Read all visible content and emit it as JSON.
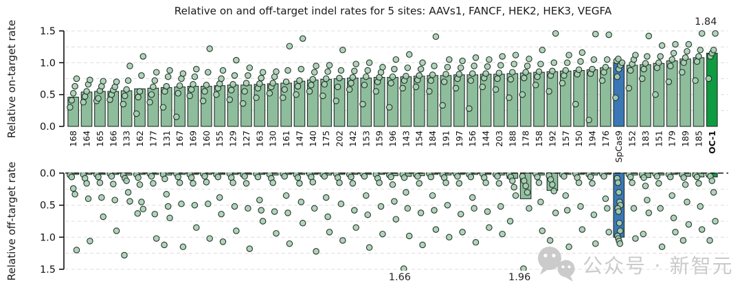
{
  "figure": {
    "title": "Relative on and off-target indel rates for 5 sites: AAVs1, FANCF, HEK2, HEK3, VEGFA"
  },
  "watermark": {
    "icon": "wechat-bubbles-icon",
    "text": "公众号 · 新智元",
    "color": "#c2c2c2"
  },
  "chart_data": {
    "type": "bar",
    "title": "Relative on and off-target indel rates for 5 sites: AAVs1, FANCF, HEK2, HEK3, VEGFA",
    "panels": [
      {
        "id": "top",
        "ylabel": "Relative on-target rate",
        "yticks": [
          0.0,
          0.5,
          1.0,
          1.5
        ],
        "ylim": [
          0,
          1.5
        ],
        "inverted": false,
        "grid": true
      },
      {
        "id": "bottom",
        "ylabel": "Relative off-target rate",
        "yticks": [
          0.0,
          0.5,
          1.0,
          1.5
        ],
        "ylim": [
          0,
          1.5
        ],
        "inverted": true,
        "grid": true
      }
    ],
    "ymax": 1.5,
    "ytick_labels": [
      "0.0",
      "0.5",
      "1.0",
      "1.5"
    ],
    "colors": {
      "bar": "#8ebd9c",
      "bar_stroke": "#1f2d24",
      "point": "#a9cfb4",
      "point_stroke": "#23322a",
      "spcas9": "#3a78b5",
      "oc1": "#0f9b41",
      "grid": "#dcdcdc",
      "axis": "#111111",
      "zero_line": "#111111",
      "label": "#111111",
      "title": "#1a1a1a",
      "annotation": "#222222"
    },
    "annotations": [
      {
        "panel": "top",
        "category": "OC-1",
        "text": "1.84",
        "value": 1.84
      },
      {
        "panel": "bottom",
        "category": "143",
        "text": "1.66",
        "value": 1.66
      },
      {
        "panel": "bottom",
        "category": "178",
        "text": "1.96",
        "value": 1.96
      }
    ],
    "categories": [
      {
        "label": "168",
        "highlight": null,
        "on": 0.46,
        "off": 0.02,
        "on_pts": [
          0.3,
          0.41,
          0.52,
          0.63,
          0.75
        ],
        "off_pts": [
          0.03,
          0.06,
          0.24,
          0.33,
          1.2
        ]
      },
      {
        "label": "164",
        "highlight": null,
        "on": 0.54,
        "off": 0.02,
        "on_pts": [
          0.38,
          0.47,
          0.55,
          0.66,
          0.73
        ],
        "off_pts": [
          0.02,
          0.08,
          0.16,
          0.4,
          1.06
        ]
      },
      {
        "label": "165",
        "highlight": null,
        "on": 0.55,
        "off": 0.02,
        "on_pts": [
          0.4,
          0.44,
          0.56,
          0.63,
          0.71
        ],
        "off_pts": [
          0.02,
          0.06,
          0.15,
          0.38,
          0.68
        ]
      },
      {
        "label": "166",
        "highlight": null,
        "on": 0.55,
        "off": 0.02,
        "on_pts": [
          0.42,
          0.5,
          0.57,
          0.62,
          0.7
        ],
        "off_pts": [
          0.01,
          0.05,
          0.17,
          0.42,
          0.9
        ]
      },
      {
        "label": "133",
        "highlight": null,
        "on": 0.56,
        "off": 0.03,
        "on_pts": [
          0.35,
          0.48,
          0.58,
          0.72,
          0.95
        ],
        "off_pts": [
          0.03,
          0.08,
          0.12,
          0.3,
          0.44,
          1.28
        ]
      },
      {
        "label": "162",
        "highlight": null,
        "on": 0.59,
        "off": 0.02,
        "on_pts": [
          0.2,
          0.46,
          0.55,
          0.8,
          1.1
        ],
        "off_pts": [
          0.02,
          0.07,
          0.18,
          0.45,
          0.56,
          0.63
        ]
      },
      {
        "label": "177",
        "highlight": null,
        "on": 0.6,
        "off": 0.02,
        "on_pts": [
          0.38,
          0.5,
          0.62,
          0.72,
          0.85
        ],
        "off_pts": [
          0.01,
          0.05,
          0.16,
          0.64,
          1.02
        ]
      },
      {
        "label": "131",
        "highlight": null,
        "on": 0.61,
        "off": 0.03,
        "on_pts": [
          0.3,
          0.55,
          0.63,
          0.78,
          0.88
        ],
        "off_pts": [
          0.02,
          0.09,
          0.33,
          0.52,
          0.7,
          1.12
        ]
      },
      {
        "label": "167",
        "highlight": null,
        "on": 0.62,
        "off": 0.02,
        "on_pts": [
          0.15,
          0.52,
          0.64,
          0.75,
          0.83
        ],
        "off_pts": [
          0.01,
          0.06,
          0.15,
          0.48,
          1.15
        ]
      },
      {
        "label": "169",
        "highlight": null,
        "on": 0.63,
        "off": 0.02,
        "on_pts": [
          0.48,
          0.58,
          0.66,
          0.78,
          0.9
        ],
        "off_pts": [
          0.02,
          0.07,
          0.16,
          0.5,
          0.85
        ]
      },
      {
        "label": "160",
        "highlight": null,
        "on": 0.63,
        "off": 0.02,
        "on_pts": [
          0.4,
          0.55,
          0.65,
          0.85,
          1.22
        ],
        "off_pts": [
          0.01,
          0.05,
          0.14,
          0.48,
          1.02
        ]
      },
      {
        "label": "155",
        "highlight": null,
        "on": 0.64,
        "off": 0.02,
        "on_pts": [
          0.5,
          0.6,
          0.67,
          0.75,
          0.88
        ],
        "off_pts": [
          0.02,
          0.06,
          0.38,
          0.64,
          1.07
        ]
      },
      {
        "label": "129",
        "highlight": null,
        "on": 0.65,
        "off": 0.02,
        "on_pts": [
          0.42,
          0.57,
          0.66,
          0.8,
          1.04
        ],
        "off_pts": [
          0.01,
          0.07,
          0.15,
          0.52,
          0.9
        ]
      },
      {
        "label": "127",
        "highlight": null,
        "on": 0.65,
        "off": 0.02,
        "on_pts": [
          0.36,
          0.55,
          0.68,
          0.8,
          0.92
        ],
        "off_pts": [
          0.02,
          0.05,
          0.16,
          0.55,
          1.18
        ]
      },
      {
        "label": "163",
        "highlight": null,
        "on": 0.66,
        "off": 0.02,
        "on_pts": [
          0.45,
          0.6,
          0.67,
          0.76,
          0.85
        ],
        "off_pts": [
          0.01,
          0.06,
          0.42,
          0.58,
          0.75
        ]
      },
      {
        "label": "130",
        "highlight": null,
        "on": 0.67,
        "off": 0.03,
        "on_pts": [
          0.52,
          0.62,
          0.68,
          0.78,
          0.86
        ],
        "off_pts": [
          0.02,
          0.08,
          0.15,
          0.6,
          0.94
        ]
      },
      {
        "label": "161",
        "highlight": null,
        "on": 0.68,
        "off": 0.02,
        "on_pts": [
          0.45,
          0.58,
          0.7,
          0.88,
          1.26
        ],
        "off_pts": [
          0.01,
          0.05,
          0.35,
          0.62,
          1.1
        ]
      },
      {
        "label": "147",
        "highlight": null,
        "on": 0.71,
        "off": 0.02,
        "on_pts": [
          0.5,
          0.63,
          0.72,
          0.9,
          1.38
        ],
        "off_pts": [
          0.02,
          0.07,
          0.16,
          0.45,
          0.78
        ]
      },
      {
        "label": "140",
        "highlight": null,
        "on": 0.73,
        "off": 0.02,
        "on_pts": [
          0.55,
          0.65,
          0.74,
          0.85,
          0.95
        ],
        "off_pts": [
          0.01,
          0.06,
          0.14,
          0.55,
          1.22
        ]
      },
      {
        "label": "175",
        "highlight": null,
        "on": 0.74,
        "off": 0.03,
        "on_pts": [
          0.48,
          0.66,
          0.75,
          0.86,
          0.96
        ],
        "off_pts": [
          0.02,
          0.05,
          0.38,
          0.68,
          0.92
        ]
      },
      {
        "label": "202",
        "highlight": null,
        "on": 0.75,
        "off": 0.02,
        "on_pts": [
          0.4,
          0.62,
          0.76,
          0.88,
          1.2
        ],
        "off_pts": [
          0.01,
          0.07,
          0.15,
          0.48,
          1.05
        ]
      },
      {
        "label": "142",
        "highlight": null,
        "on": 0.76,
        "off": 0.02,
        "on_pts": [
          0.58,
          0.68,
          0.77,
          0.87,
          0.98
        ],
        "off_pts": [
          0.02,
          0.06,
          0.16,
          0.58,
          0.85
        ]
      },
      {
        "label": "153",
        "highlight": null,
        "on": 0.76,
        "off": 0.02,
        "on_pts": [
          0.35,
          0.65,
          0.78,
          0.88,
          1.0
        ],
        "off_pts": [
          0.01,
          0.05,
          0.35,
          0.65,
          1.16
        ]
      },
      {
        "label": "159",
        "highlight": null,
        "on": 0.77,
        "off": 0.02,
        "on_pts": [
          0.55,
          0.7,
          0.77,
          0.85,
          0.93
        ],
        "off_pts": [
          0.02,
          0.08,
          0.15,
          0.52,
          0.95
        ]
      },
      {
        "label": "196",
        "highlight": null,
        "on": 0.77,
        "off": 0.04,
        "on_pts": [
          0.3,
          0.68,
          0.78,
          0.9,
          1.05
        ],
        "off_pts": [
          0.03,
          0.06,
          0.18,
          0.44,
          0.72
        ]
      },
      {
        "label": "143",
        "highlight": null,
        "on": 0.78,
        "off": 0.05,
        "on_pts": [
          0.6,
          0.72,
          0.79,
          0.92,
          1.13
        ],
        "off_pts": [
          0.02,
          0.07,
          0.3,
          0.55,
          0.98,
          1.66
        ]
      },
      {
        "label": "154",
        "highlight": null,
        "on": 0.79,
        "off": 0.04,
        "on_pts": [
          0.62,
          0.73,
          0.8,
          0.9,
          1.0
        ],
        "off_pts": [
          0.02,
          0.05,
          0.16,
          0.62,
          1.12
        ]
      },
      {
        "label": "184",
        "highlight": null,
        "on": 0.8,
        "off": 0.02,
        "on_pts": [
          0.55,
          0.72,
          0.81,
          0.95,
          1.41
        ],
        "off_pts": [
          0.01,
          0.06,
          0.35,
          0.58,
          0.88
        ]
      },
      {
        "label": "191",
        "highlight": null,
        "on": 0.8,
        "off": 0.03,
        "on_pts": [
          0.33,
          0.7,
          0.82,
          0.93,
          1.05
        ],
        "off_pts": [
          0.02,
          0.07,
          0.15,
          0.5,
          1.0
        ]
      },
      {
        "label": "197",
        "highlight": null,
        "on": 0.81,
        "off": 0.02,
        "on_pts": [
          0.6,
          0.75,
          0.82,
          0.92,
          1.03
        ],
        "off_pts": [
          0.01,
          0.05,
          0.16,
          0.64,
          0.92
        ]
      },
      {
        "label": "156",
        "highlight": null,
        "on": 0.81,
        "off": 0.02,
        "on_pts": [
          0.28,
          0.72,
          0.83,
          0.95,
          1.08
        ],
        "off_pts": [
          0.02,
          0.06,
          0.38,
          0.55,
          1.08
        ]
      },
      {
        "label": "144",
        "highlight": null,
        "on": 0.82,
        "off": 0.02,
        "on_pts": [
          0.62,
          0.76,
          0.83,
          0.94,
          1.05
        ],
        "off_pts": [
          0.01,
          0.07,
          0.15,
          0.6,
          0.85
        ]
      },
      {
        "label": "203",
        "highlight": null,
        "on": 0.82,
        "off": 0.03,
        "on_pts": [
          0.58,
          0.75,
          0.84,
          0.96,
          1.1
        ],
        "off_pts": [
          0.02,
          0.05,
          0.16,
          0.52,
          0.95
        ]
      },
      {
        "label": "188",
        "highlight": null,
        "on": 0.83,
        "off": 0.08,
        "on_pts": [
          0.45,
          0.74,
          0.85,
          0.98,
          1.12
        ],
        "off_pts": [
          0.02,
          0.06,
          0.12,
          0.22,
          0.35,
          0.75
        ]
      },
      {
        "label": "178",
        "highlight": null,
        "on": 0.84,
        "off": 0.4,
        "on_pts": [
          0.5,
          0.76,
          0.85,
          0.95,
          1.06
        ],
        "off_pts": [
          0.05,
          0.12,
          0.2,
          0.3,
          0.55,
          1.96
        ]
      },
      {
        "label": "158",
        "highlight": null,
        "on": 0.85,
        "off": 0.03,
        "on_pts": [
          0.65,
          0.78,
          0.86,
          0.98,
          1.2
        ],
        "off_pts": [
          0.01,
          0.06,
          0.15,
          0.45,
          0.9
        ]
      },
      {
        "label": "192",
        "highlight": null,
        "on": 0.86,
        "off": 0.27,
        "on_pts": [
          0.55,
          0.8,
          0.87,
          1.0,
          1.48
        ],
        "off_pts": [
          0.04,
          0.1,
          0.18,
          0.28,
          0.62,
          1.05
        ]
      },
      {
        "label": "157",
        "highlight": null,
        "on": 0.87,
        "off": 0.02,
        "on_pts": [
          0.68,
          0.8,
          0.88,
          1.0,
          1.12
        ],
        "off_pts": [
          0.02,
          0.05,
          0.35,
          0.58,
          1.15
        ]
      },
      {
        "label": "150",
        "highlight": null,
        "on": 0.88,
        "off": 0.02,
        "on_pts": [
          0.35,
          0.82,
          0.89,
          1.02,
          1.16
        ],
        "off_pts": [
          0.01,
          0.07,
          0.15,
          0.52,
          0.88
        ]
      },
      {
        "label": "194",
        "highlight": null,
        "on": 0.89,
        "off": 0.03,
        "on_pts": [
          0.1,
          0.83,
          0.9,
          1.05,
          1.45
        ],
        "off_pts": [
          0.02,
          0.06,
          0.16,
          0.65,
          1.1
        ]
      },
      {
        "label": "176",
        "highlight": null,
        "on": 0.92,
        "off": 0.02,
        "on_pts": [
          0.72,
          0.85,
          0.93,
          1.05,
          1.44
        ],
        "off_pts": [
          0.01,
          0.05,
          0.4,
          0.55,
          0.92
        ]
      },
      {
        "label": "SpCas9",
        "highlight": "spcas9",
        "on": 1.0,
        "off": 1.0,
        "on_pts": [
          0.45,
          0.78,
          0.9,
          0.96,
          1.0,
          1.03,
          1.06
        ],
        "off_pts": [
          0.08,
          0.15,
          0.3,
          0.45,
          0.5,
          0.55,
          0.6,
          0.78,
          0.9,
          0.98,
          1.02,
          1.06,
          1.1
        ]
      },
      {
        "label": "152",
        "highlight": null,
        "on": 0.96,
        "off": 0.03,
        "on_pts": [
          0.6,
          0.88,
          0.98,
          1.05,
          1.12
        ],
        "off_pts": [
          0.02,
          0.06,
          0.15,
          0.55,
          1.02
        ]
      },
      {
        "label": "183",
        "highlight": null,
        "on": 0.97,
        "off": 0.07,
        "on_pts": [
          0.75,
          0.9,
          0.99,
          1.1,
          1.42
        ],
        "off_pts": [
          0.02,
          0.07,
          0.2,
          0.42,
          0.62,
          0.95
        ]
      },
      {
        "label": "151",
        "highlight": null,
        "on": 0.99,
        "off": 0.03,
        "on_pts": [
          0.5,
          0.92,
          1.0,
          1.1,
          1.27
        ],
        "off_pts": [
          0.01,
          0.05,
          0.16,
          0.55,
          1.15
        ]
      },
      {
        "label": "179",
        "highlight": null,
        "on": 1.03,
        "off": 0.02,
        "on_pts": [
          0.7,
          0.95,
          1.05,
          1.15,
          1.29
        ],
        "off_pts": [
          0.02,
          0.06,
          0.35,
          0.7,
          0.92
        ]
      },
      {
        "label": "189",
        "highlight": null,
        "on": 1.06,
        "off": 0.05,
        "on_pts": [
          0.85,
          1.0,
          1.08,
          1.18,
          1.29
        ],
        "off_pts": [
          0.02,
          0.07,
          0.18,
          0.45,
          0.8,
          1.05
        ]
      },
      {
        "label": "185",
        "highlight": null,
        "on": 1.08,
        "off": 0.06,
        "on_pts": [
          0.72,
          1.02,
          1.1,
          1.2,
          1.57
        ],
        "off_pts": [
          0.03,
          0.06,
          0.16,
          0.52,
          0.88
        ]
      },
      {
        "label": "OC-1",
        "highlight": "oc1",
        "on": 1.15,
        "off": 0.06,
        "on_pts": [
          0.75,
          1.1,
          1.15,
          1.2,
          1.84
        ],
        "off_pts": [
          0.02,
          0.05,
          0.12,
          0.3,
          0.75,
          1.05
        ]
      }
    ]
  }
}
